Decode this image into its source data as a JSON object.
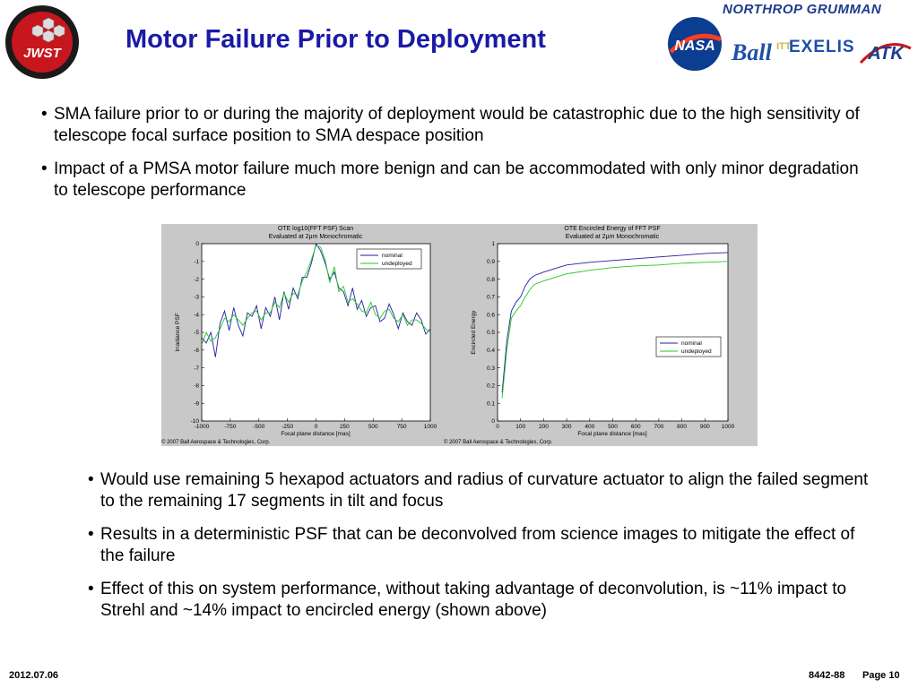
{
  "header": {
    "title": "Motor Failure Prior to Deployment",
    "jwst_logo_text": "JWST",
    "northrop_text": "NORTHROP GRUMMAN",
    "nasa_text": "NASA",
    "ball_text": "Ball",
    "itt_text": "ITT",
    "exelis_text": "EXELIS",
    "atk_text": "ATK"
  },
  "bullets_top": [
    "SMA failure prior to or during the majority of deployment would be catastrophic due to the high sensitivity of telescope focal surface position to SMA despace position",
    "Impact of a PMSA motor failure much more benign and can be accommodated with only minor degradation to telescope performance"
  ],
  "bullets_bottom": [
    "Would use remaining 5 hexapod actuators and radius of curvature actuator to align the failed segment to the remaining 17 segments in tilt and focus",
    "Results in a deterministic PSF that can be deconvolved from science images to mitigate the effect of the failure",
    "Effect of this on system performance, without taking advantage of deconvolution, is ~11% impact to Strehl and ~14% impact to encircled energy (shown above)"
  ],
  "bullet_marker": "•",
  "footer": {
    "date": "2012.07.06",
    "doc": "8442-88",
    "page": "Page 10"
  },
  "colors": {
    "title": "#1a1aa6",
    "nominal": "#1f1fa0",
    "undeployed": "#22c922",
    "figure_bg": "#c8c8c8"
  },
  "chart_data": [
    {
      "type": "line",
      "title": "OTE log10(FFT PSF) Scan",
      "subtitle": "Evaluated at 2µm Monochromatic",
      "xlabel": "Focal plane distance [mas]",
      "ylabel": "Irradiance PSF",
      "xlim": [
        -1000,
        1000
      ],
      "ylim": [
        -10,
        0
      ],
      "xticks": [
        -1000,
        -750,
        -500,
        -250,
        0,
        250,
        500,
        750,
        1000
      ],
      "yticks": [
        0,
        -1,
        -2,
        -3,
        -4,
        -5,
        -6,
        -7,
        -8,
        -9,
        -10
      ],
      "legend": "top-right",
      "copyright": "© 2007 Ball Aerospace & Technologies, Corp.",
      "series": [
        {
          "name": "nominal",
          "color": "#1f1fa0",
          "x": [
            -1000,
            -960,
            -920,
            -880,
            -840,
            -800,
            -760,
            -720,
            -680,
            -640,
            -600,
            -560,
            -520,
            -480,
            -440,
            -400,
            -360,
            -320,
            -280,
            -240,
            -200,
            -160,
            -120,
            -80,
            -40,
            0,
            40,
            80,
            120,
            160,
            200,
            240,
            280,
            320,
            360,
            400,
            440,
            480,
            520,
            560,
            600,
            640,
            680,
            720,
            760,
            800,
            840,
            880,
            920,
            960,
            1000
          ],
          "values": [
            -5.3,
            -5.6,
            -5.0,
            -6.4,
            -4.5,
            -3.8,
            -4.9,
            -3.6,
            -4.6,
            -5.2,
            -3.9,
            -4.1,
            -3.5,
            -4.8,
            -3.6,
            -4.1,
            -3.0,
            -4.3,
            -2.7,
            -3.7,
            -2.5,
            -3.1,
            -1.9,
            -1.9,
            -1.1,
            0.0,
            -0.4,
            -1.1,
            -2.0,
            -1.6,
            -2.5,
            -2.7,
            -3.5,
            -2.5,
            -3.7,
            -3.2,
            -4.1,
            -3.6,
            -3.5,
            -4.4,
            -4.2,
            -3.4,
            -4.0,
            -4.8,
            -3.9,
            -4.4,
            -4.6,
            -3.9,
            -4.3,
            -5.1,
            -4.8
          ]
        },
        {
          "name": "undeployed",
          "color": "#22c922",
          "x": [
            -1000,
            -960,
            -920,
            -880,
            -840,
            -800,
            -760,
            -720,
            -680,
            -640,
            -600,
            -560,
            -520,
            -480,
            -440,
            -400,
            -360,
            -320,
            -280,
            -240,
            -200,
            -160,
            -120,
            -80,
            -40,
            0,
            40,
            80,
            120,
            160,
            200,
            240,
            280,
            320,
            360,
            400,
            440,
            480,
            520,
            560,
            600,
            640,
            680,
            720,
            760,
            800,
            840,
            880,
            920,
            960,
            1000
          ],
          "values": [
            -5.7,
            -5.0,
            -5.5,
            -5.3,
            -4.8,
            -4.2,
            -4.4,
            -4.0,
            -4.3,
            -4.6,
            -4.2,
            -3.9,
            -3.8,
            -4.3,
            -3.9,
            -3.9,
            -3.3,
            -3.6,
            -2.8,
            -3.3,
            -2.8,
            -2.9,
            -2.1,
            -1.6,
            -0.9,
            -0.1,
            -0.2,
            -0.9,
            -2.2,
            -1.3,
            -2.7,
            -2.4,
            -3.3,
            -3.1,
            -3.4,
            -3.8,
            -3.9,
            -3.3,
            -4.0,
            -4.2,
            -3.8,
            -3.7,
            -4.2,
            -4.4,
            -4.0,
            -4.6,
            -4.3,
            -4.3,
            -4.5,
            -4.8,
            -5.0
          ]
        }
      ]
    },
    {
      "type": "line",
      "title": "OTE Encircled Energy of FFT PSF",
      "subtitle": "Evaluated at 2µm Monochromatic",
      "xlabel": "Focal plane distance [mas]",
      "ylabel": "Encircled Energy",
      "xlim": [
        0,
        1000
      ],
      "ylim": [
        0,
        1
      ],
      "xticks": [
        0,
        100,
        200,
        300,
        400,
        500,
        600,
        700,
        800,
        900,
        1000
      ],
      "yticks": [
        0,
        0.1,
        0.2,
        0.3,
        0.4,
        0.5,
        0.6,
        0.7,
        0.8,
        0.9,
        1
      ],
      "legend": "middle-right",
      "copyright": "© 2007 Ball Aerospace & Technologies, Corp.",
      "series": [
        {
          "name": "nominal",
          "color": "#1f1fa0",
          "x": [
            20,
            40,
            60,
            80,
            100,
            120,
            140,
            160,
            200,
            250,
            300,
            400,
            500,
            600,
            700,
            800,
            900,
            1000
          ],
          "values": [
            0.16,
            0.45,
            0.62,
            0.67,
            0.7,
            0.76,
            0.8,
            0.82,
            0.84,
            0.86,
            0.88,
            0.895,
            0.905,
            0.915,
            0.925,
            0.935,
            0.945,
            0.95
          ]
        },
        {
          "name": "undeployed",
          "color": "#22c922",
          "x": [
            20,
            40,
            60,
            80,
            100,
            120,
            140,
            160,
            200,
            250,
            300,
            400,
            500,
            600,
            700,
            800,
            900,
            1000
          ],
          "values": [
            0.13,
            0.4,
            0.58,
            0.62,
            0.65,
            0.7,
            0.74,
            0.77,
            0.79,
            0.81,
            0.83,
            0.85,
            0.865,
            0.875,
            0.88,
            0.89,
            0.895,
            0.9
          ]
        }
      ]
    }
  ]
}
